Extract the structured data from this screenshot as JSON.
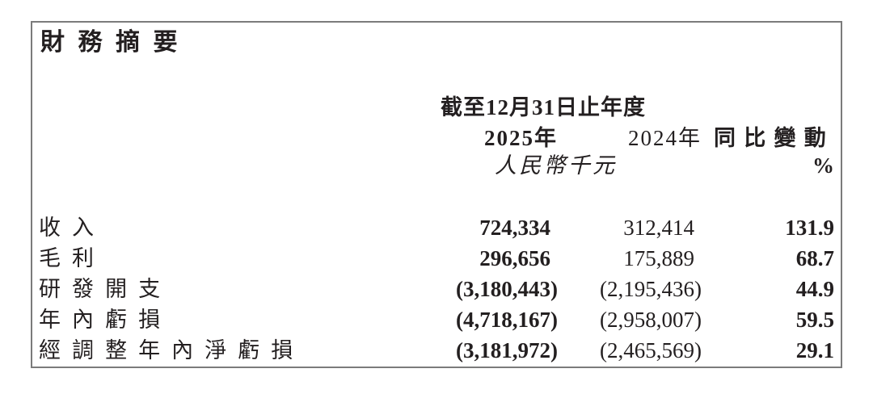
{
  "title": "財務摘要",
  "table": {
    "period_header": "截至12月31日止年度",
    "col_2025": "2025年",
    "col_2024": "2024年",
    "col_change": "同比變動",
    "unit_label": "人民幣千元",
    "unit_change": "%",
    "rows": [
      {
        "label": "收入",
        "y2025": "724,334",
        "y2024": "312,414",
        "change": "131.9"
      },
      {
        "label": "毛利",
        "y2025": "296,656",
        "y2024": "175,889",
        "change": "68.7"
      },
      {
        "label": "研發開支",
        "y2025": "(3,180,443)",
        "y2024": "(2,195,436)",
        "change": "44.9"
      },
      {
        "label": "年內虧損",
        "y2025": "(4,718,167)",
        "y2024": "(2,958,007)",
        "change": "59.5"
      },
      {
        "label": "經調整年內淨虧損",
        "y2025": "(3,181,972)",
        "y2024": "(2,465,569)",
        "change": "29.1"
      }
    ]
  },
  "colors": {
    "text": "#231f20",
    "border": "#7b7b7b",
    "background": "#ffffff"
  }
}
